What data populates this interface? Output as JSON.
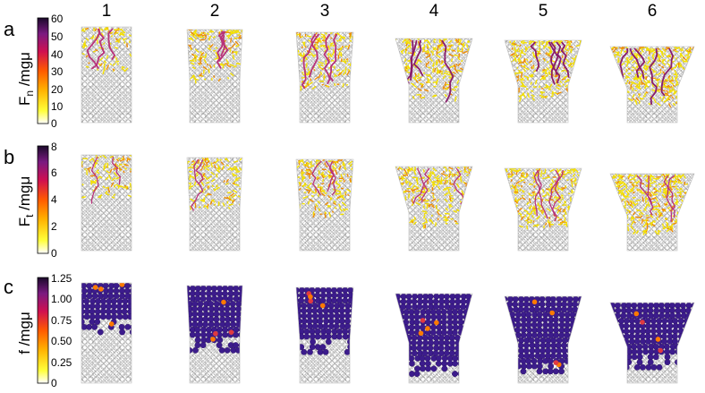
{
  "column_labels": [
    "1",
    "2",
    "3",
    "4",
    "5",
    "6"
  ],
  "rows": [
    {
      "letter": "a",
      "label_main": "F",
      "label_sub": "n",
      "label_unit": " /mgμ",
      "colorbar_ticks": [
        "0",
        "10",
        "20",
        "30",
        "40",
        "50",
        "60"
      ],
      "colormap": "hot",
      "colors": [
        "#ffffff",
        "#ffff3a",
        "#ffb000",
        "#ff5a00",
        "#d01050",
        "#7a1a80",
        "#1a0a2a"
      ]
    },
    {
      "letter": "b",
      "label_main": "F",
      "label_sub": "t",
      "label_unit": " /mgμ",
      "colorbar_ticks": [
        "0",
        "2",
        "4",
        "6",
        "8"
      ],
      "colormap": "hot",
      "colors": [
        "#ffffff",
        "#ffff3a",
        "#ffb000",
        "#ff5a00",
        "#d01050",
        "#7a1a80",
        "#1a0a2a"
      ]
    },
    {
      "letter": "c",
      "label_main": "f /mgμ",
      "label_sub": "",
      "label_unit": "",
      "colorbar_ticks": [
        "0",
        "0.25",
        "0.50",
        "0.75",
        "1.00",
        "1.25"
      ],
      "colormap": "hot",
      "colors": [
        "#ffffff",
        "#ffff3a",
        "#ffb000",
        "#ff5a00",
        "#d01050",
        "#7a1a80",
        "#1a0a2a"
      ]
    }
  ],
  "palette": {
    "grain_outline": "#9a9a9a",
    "grain_fill": "#ffffff",
    "saturated_fill": "#3c1c8c",
    "weak_force": "#f4e000",
    "mid_force": "#f08c00",
    "strong_force": "#8a1c6c"
  }
}
